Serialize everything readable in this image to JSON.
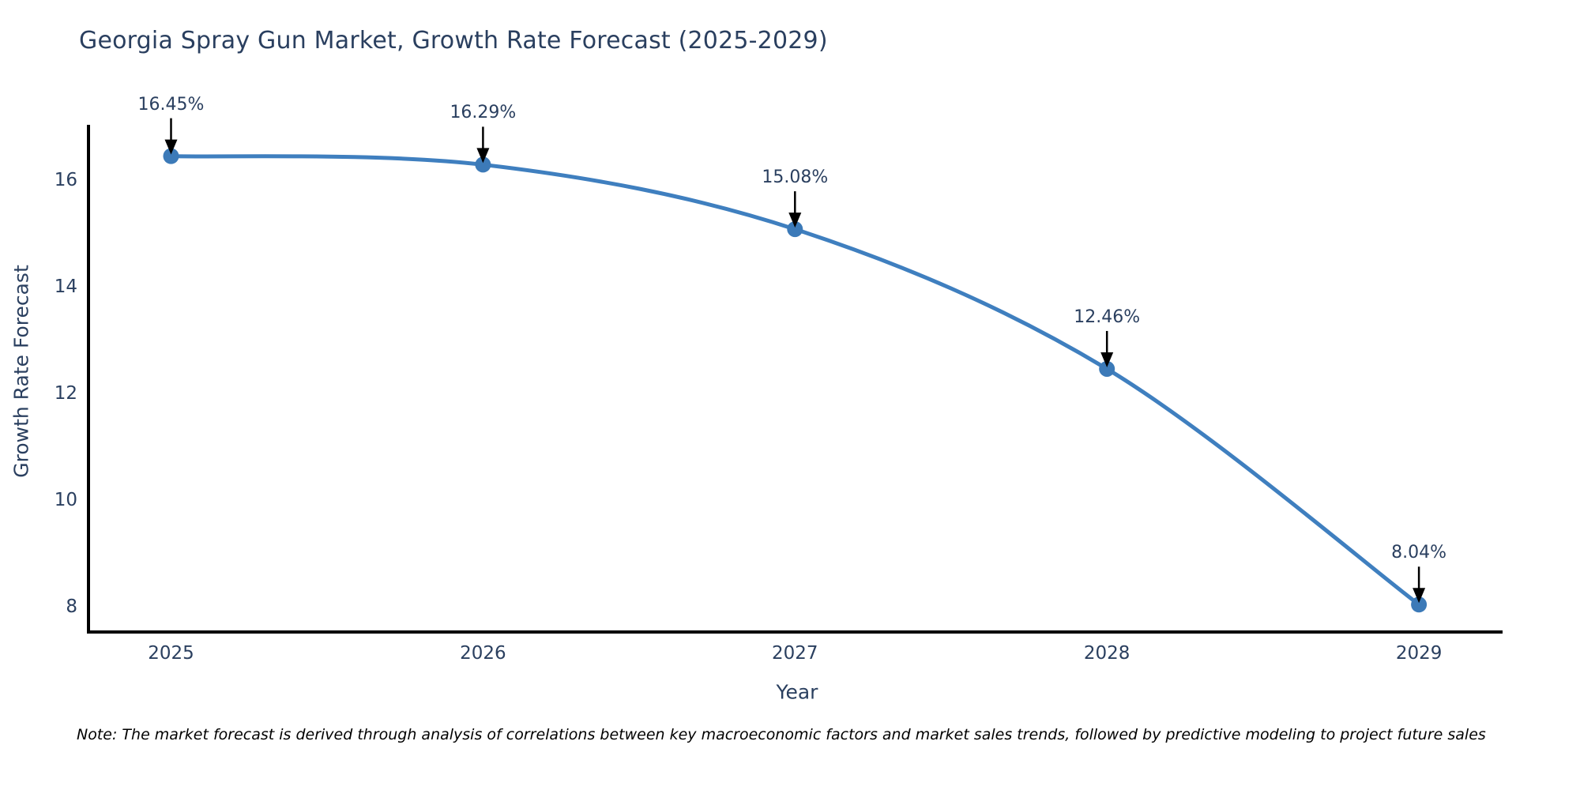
{
  "title": "Georgia Spray Gun Market, Growth Rate Forecast (2025-2029)",
  "note": "Note: The market forecast is derived through analysis of correlations between key macroeconomic factors and market sales trends, followed by predictive modeling to project future sales",
  "colors": {
    "title_text": "#2a3f5f",
    "tick_text": "#2a3f5f",
    "axis_line": "#000000",
    "line": "#3f7fbf",
    "marker": "#3c7ab8",
    "annotation_text": "#2a3f5f",
    "annotation_arrow": "#000000",
    "background": "#ffffff"
  },
  "chart_data": {
    "type": "line",
    "title": "Georgia Spray Gun Market, Growth Rate Forecast (2025-2029)",
    "x": [
      2025,
      2026,
      2027,
      2028,
      2029
    ],
    "series": [
      {
        "name": "Growth Rate Forecast",
        "values": [
          16.45,
          16.29,
          15.08,
          12.46,
          8.04
        ]
      }
    ],
    "point_labels": [
      "16.45%",
      "16.29%",
      "15.08%",
      "12.46%",
      "8.04%"
    ],
    "xlabel": "Year",
    "ylabel": "Growth Rate Forecast",
    "xticks": [
      "2025",
      "2026",
      "2027",
      "2028",
      "2029"
    ],
    "yticks": [
      8,
      10,
      12,
      14,
      16
    ],
    "ylim": [
      7.5,
      17.0
    ],
    "grid": false,
    "legend_position": "none",
    "line_shape": "spline",
    "markers": true,
    "annotations_have_arrows": true
  }
}
